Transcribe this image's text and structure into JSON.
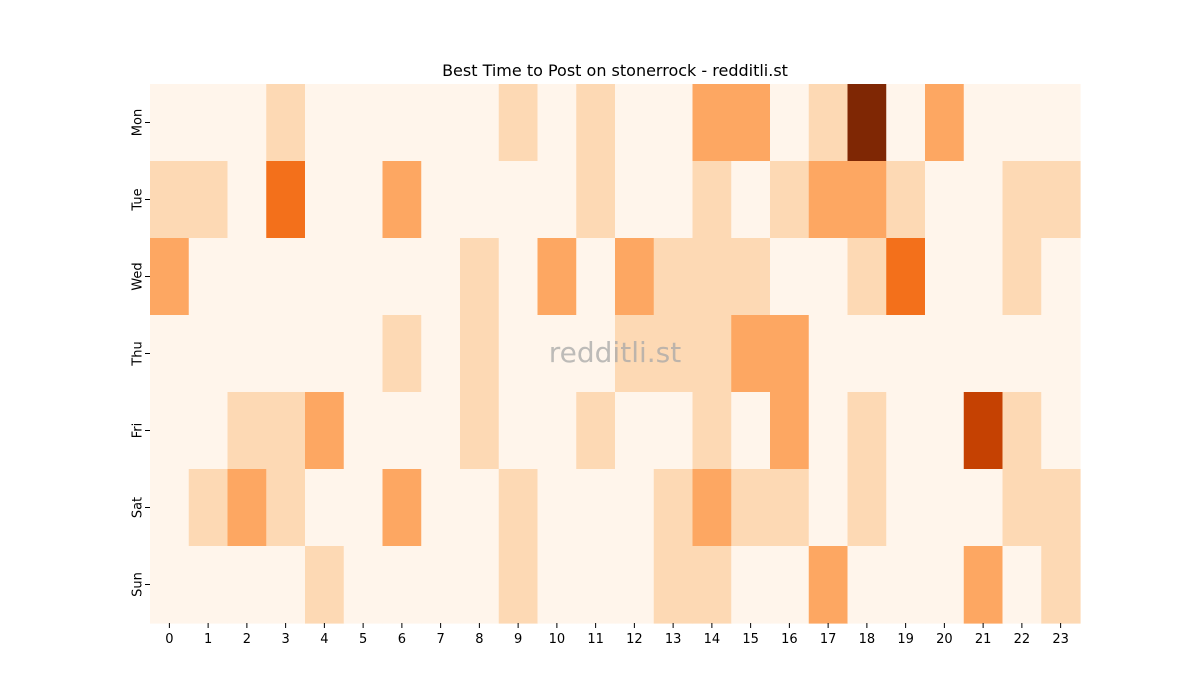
{
  "chart_data": {
    "type": "heatmap",
    "title": "Best Time to Post on stonerrock - redditli.st",
    "xlabel": "",
    "ylabel": "",
    "x": [
      "0",
      "1",
      "2",
      "3",
      "4",
      "5",
      "6",
      "7",
      "8",
      "9",
      "10",
      "11",
      "12",
      "13",
      "14",
      "15",
      "16",
      "17",
      "18",
      "19",
      "20",
      "21",
      "22",
      "23"
    ],
    "y": [
      "Mon",
      "Tue",
      "Wed",
      "Thu",
      "Fri",
      "Sat",
      "Sun"
    ],
    "values": [
      [
        0,
        0,
        0,
        1,
        0,
        0,
        0,
        0,
        0,
        1,
        0,
        1,
        0,
        0,
        2,
        2,
        0,
        1,
        5,
        0,
        2,
        0,
        0,
        0
      ],
      [
        1,
        1,
        0,
        3,
        0,
        0,
        2,
        0,
        0,
        0,
        0,
        1,
        0,
        0,
        1,
        0,
        1,
        2,
        2,
        1,
        0,
        0,
        1,
        1
      ],
      [
        2,
        0,
        0,
        0,
        0,
        0,
        0,
        0,
        1,
        0,
        2,
        0,
        2,
        1,
        1,
        1,
        0,
        0,
        1,
        3,
        0,
        0,
        1,
        0
      ],
      [
        0,
        0,
        0,
        0,
        0,
        0,
        1,
        0,
        1,
        0,
        0,
        0,
        1,
        1,
        1,
        2,
        2,
        0,
        0,
        0,
        0,
        0,
        0,
        0
      ],
      [
        0,
        0,
        1,
        1,
        2,
        0,
        0,
        0,
        1,
        0,
        0,
        1,
        0,
        0,
        1,
        0,
        2,
        0,
        1,
        0,
        0,
        4,
        1,
        0
      ],
      [
        0,
        1,
        2,
        1,
        0,
        0,
        2,
        0,
        0,
        1,
        0,
        0,
        0,
        1,
        2,
        1,
        1,
        0,
        1,
        0,
        0,
        0,
        1,
        1
      ],
      [
        0,
        0,
        0,
        0,
        1,
        0,
        0,
        0,
        0,
        1,
        0,
        0,
        0,
        1,
        1,
        0,
        0,
        2,
        0,
        0,
        0,
        2,
        0,
        1
      ]
    ],
    "colormap": "Oranges",
    "level_colors": [
      "#fff5eb",
      "#fdd9b4",
      "#fda762",
      "#f3701b",
      "#c54102",
      "#7f2704"
    ],
    "watermark": "redditli.st"
  }
}
